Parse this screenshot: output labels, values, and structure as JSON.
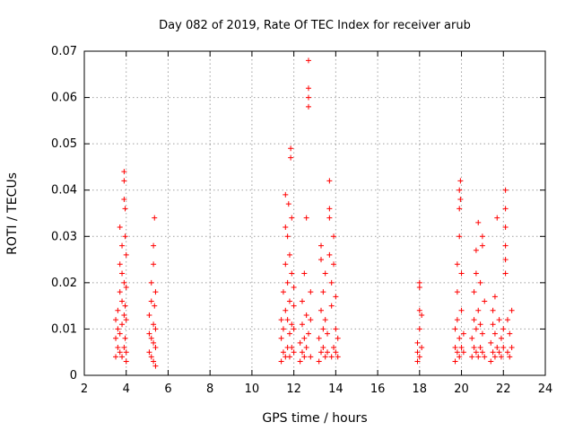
{
  "chart_data": {
    "type": "scatter",
    "title": "Day 082 of 2019, Rate Of TEC Index for receiver arub",
    "xlabel": "GPS time / hours",
    "ylabel": "ROTI / TECUs",
    "xlim": [
      2,
      24
    ],
    "ylim": [
      0,
      0.07
    ],
    "xticks": [
      2,
      4,
      6,
      8,
      10,
      12,
      14,
      16,
      18,
      20,
      22,
      24
    ],
    "yticks": [
      0,
      0.01,
      0.02,
      0.03,
      0.04,
      0.05,
      0.06,
      0.07
    ],
    "ytick_labels": [
      "0",
      "0.01",
      "0.02",
      "0.03",
      "0.04",
      "0.05",
      "0.06",
      "0.07"
    ],
    "grid": true,
    "marker": "+",
    "color": "#ff0000",
    "series": [
      {
        "points": [
          [
            3.5,
            0.004
          ],
          [
            3.5,
            0.008
          ],
          [
            3.5,
            0.012
          ],
          [
            3.6,
            0.006
          ],
          [
            3.6,
            0.01
          ],
          [
            3.6,
            0.014
          ],
          [
            3.7,
            0.005
          ],
          [
            3.7,
            0.009
          ],
          [
            3.7,
            0.018
          ],
          [
            3.7,
            0.024
          ],
          [
            3.7,
            0.032
          ],
          [
            3.8,
            0.004
          ],
          [
            3.8,
            0.011
          ],
          [
            3.8,
            0.016
          ],
          [
            3.8,
            0.022
          ],
          [
            3.8,
            0.028
          ],
          [
            3.9,
            0.006
          ],
          [
            3.9,
            0.013
          ],
          [
            3.9,
            0.02
          ],
          [
            3.9,
            0.044
          ],
          [
            3.9,
            0.042
          ],
          [
            3.9,
            0.038
          ],
          [
            3.95,
            0.008
          ],
          [
            3.95,
            0.015
          ],
          [
            3.95,
            0.03
          ],
          [
            3.95,
            0.036
          ],
          [
            4.0,
            0.005
          ],
          [
            4.0,
            0.012
          ],
          [
            4.0,
            0.019
          ],
          [
            4.0,
            0.026
          ],
          [
            4.0,
            0.003
          ],
          [
            5.1,
            0.005
          ],
          [
            5.1,
            0.009
          ],
          [
            5.1,
            0.013
          ],
          [
            5.2,
            0.004
          ],
          [
            5.2,
            0.008
          ],
          [
            5.2,
            0.016
          ],
          [
            5.2,
            0.02
          ],
          [
            5.3,
            0.003
          ],
          [
            5.3,
            0.007
          ],
          [
            5.3,
            0.011
          ],
          [
            5.3,
            0.024
          ],
          [
            5.3,
            0.028
          ],
          [
            5.35,
            0.034
          ],
          [
            5.35,
            0.015
          ],
          [
            5.4,
            0.006
          ],
          [
            5.4,
            0.01
          ],
          [
            5.4,
            0.018
          ],
          [
            5.4,
            0.002
          ],
          [
            11.4,
            0.003
          ],
          [
            11.4,
            0.008
          ],
          [
            11.4,
            0.012
          ],
          [
            11.5,
            0.005
          ],
          [
            11.5,
            0.01
          ],
          [
            11.5,
            0.018
          ],
          [
            11.6,
            0.004
          ],
          [
            11.6,
            0.014
          ],
          [
            11.6,
            0.024
          ],
          [
            11.6,
            0.032
          ],
          [
            11.6,
            0.039
          ],
          [
            11.7,
            0.006
          ],
          [
            11.7,
            0.012
          ],
          [
            11.7,
            0.02
          ],
          [
            11.7,
            0.03
          ],
          [
            11.75,
            0.037
          ],
          [
            11.8,
            0.004
          ],
          [
            11.8,
            0.009
          ],
          [
            11.8,
            0.016
          ],
          [
            11.8,
            0.026
          ],
          [
            11.85,
            0.049
          ],
          [
            11.85,
            0.047
          ],
          [
            11.9,
            0.006
          ],
          [
            11.9,
            0.011
          ],
          [
            11.9,
            0.022
          ],
          [
            11.9,
            0.034
          ],
          [
            12.0,
            0.005
          ],
          [
            12.0,
            0.01
          ],
          [
            12.0,
            0.015
          ],
          [
            12.0,
            0.019
          ],
          [
            12.3,
            0.003
          ],
          [
            12.3,
            0.007
          ],
          [
            12.4,
            0.005
          ],
          [
            12.4,
            0.011
          ],
          [
            12.4,
            0.016
          ],
          [
            12.5,
            0.004
          ],
          [
            12.5,
            0.008
          ],
          [
            12.5,
            0.022
          ],
          [
            12.6,
            0.006
          ],
          [
            12.6,
            0.013
          ],
          [
            12.6,
            0.034
          ],
          [
            12.7,
            0.068
          ],
          [
            12.7,
            0.062
          ],
          [
            12.7,
            0.06
          ],
          [
            12.7,
            0.058
          ],
          [
            12.7,
            0.009
          ],
          [
            12.8,
            0.004
          ],
          [
            12.8,
            0.012
          ],
          [
            12.8,
            0.018
          ],
          [
            13.2,
            0.003
          ],
          [
            13.2,
            0.008
          ],
          [
            13.3,
            0.005
          ],
          [
            13.3,
            0.014
          ],
          [
            13.3,
            0.025
          ],
          [
            13.3,
            0.028
          ],
          [
            13.4,
            0.006
          ],
          [
            13.4,
            0.01
          ],
          [
            13.4,
            0.018
          ],
          [
            13.5,
            0.004
          ],
          [
            13.5,
            0.012
          ],
          [
            13.5,
            0.022
          ],
          [
            13.6,
            0.005
          ],
          [
            13.6,
            0.009
          ],
          [
            13.7,
            0.042
          ],
          [
            13.7,
            0.036
          ],
          [
            13.7,
            0.034
          ],
          [
            13.7,
            0.026
          ],
          [
            13.8,
            0.004
          ],
          [
            13.8,
            0.015
          ],
          [
            13.8,
            0.02
          ],
          [
            13.9,
            0.006
          ],
          [
            13.9,
            0.03
          ],
          [
            13.9,
            0.024
          ],
          [
            14.0,
            0.005
          ],
          [
            14.0,
            0.01
          ],
          [
            14.0,
            0.017
          ],
          [
            14.1,
            0.004
          ],
          [
            14.1,
            0.008
          ],
          [
            17.9,
            0.003
          ],
          [
            17.9,
            0.005
          ],
          [
            17.9,
            0.007
          ],
          [
            18.0,
            0.004
          ],
          [
            18.0,
            0.01
          ],
          [
            18.0,
            0.014
          ],
          [
            18.0,
            0.019
          ],
          [
            18.0,
            0.02
          ],
          [
            18.1,
            0.006
          ],
          [
            18.1,
            0.013
          ],
          [
            19.7,
            0.003
          ],
          [
            19.7,
            0.006
          ],
          [
            19.7,
            0.01
          ],
          [
            19.8,
            0.005
          ],
          [
            19.8,
            0.012
          ],
          [
            19.8,
            0.018
          ],
          [
            19.8,
            0.024
          ],
          [
            19.9,
            0.004
          ],
          [
            19.9,
            0.008
          ],
          [
            19.9,
            0.03
          ],
          [
            19.9,
            0.036
          ],
          [
            19.9,
            0.04
          ],
          [
            19.95,
            0.042
          ],
          [
            19.95,
            0.038
          ],
          [
            20.0,
            0.006
          ],
          [
            20.0,
            0.014
          ],
          [
            20.0,
            0.022
          ],
          [
            20.1,
            0.005
          ],
          [
            20.1,
            0.009
          ],
          [
            20.5,
            0.004
          ],
          [
            20.5,
            0.008
          ],
          [
            20.6,
            0.006
          ],
          [
            20.6,
            0.012
          ],
          [
            20.6,
            0.018
          ],
          [
            20.7,
            0.005
          ],
          [
            20.7,
            0.01
          ],
          [
            20.7,
            0.022
          ],
          [
            20.7,
            0.027
          ],
          [
            20.8,
            0.004
          ],
          [
            20.8,
            0.014
          ],
          [
            20.8,
            0.033
          ],
          [
            20.9,
            0.006
          ],
          [
            20.9,
            0.011
          ],
          [
            20.9,
            0.02
          ],
          [
            21.0,
            0.005
          ],
          [
            21.0,
            0.009
          ],
          [
            21.0,
            0.03
          ],
          [
            21.0,
            0.028
          ],
          [
            21.1,
            0.004
          ],
          [
            21.1,
            0.016
          ],
          [
            21.4,
            0.003
          ],
          [
            21.4,
            0.007
          ],
          [
            21.5,
            0.005
          ],
          [
            21.5,
            0.011
          ],
          [
            21.5,
            0.014
          ],
          [
            21.6,
            0.004
          ],
          [
            21.6,
            0.009
          ],
          [
            21.6,
            0.017
          ],
          [
            21.7,
            0.006
          ],
          [
            21.7,
            0.034
          ],
          [
            21.8,
            0.005
          ],
          [
            21.8,
            0.012
          ],
          [
            21.9,
            0.004
          ],
          [
            21.9,
            0.008
          ],
          [
            22.0,
            0.006
          ],
          [
            22.0,
            0.01
          ],
          [
            22.1,
            0.04
          ],
          [
            22.1,
            0.036
          ],
          [
            22.1,
            0.032
          ],
          [
            22.1,
            0.028
          ],
          [
            22.1,
            0.025
          ],
          [
            22.1,
            0.022
          ],
          [
            22.2,
            0.005
          ],
          [
            22.2,
            0.012
          ],
          [
            22.3,
            0.004
          ],
          [
            22.3,
            0.009
          ],
          [
            22.4,
            0.006
          ],
          [
            22.4,
            0.014
          ]
        ]
      }
    ]
  }
}
